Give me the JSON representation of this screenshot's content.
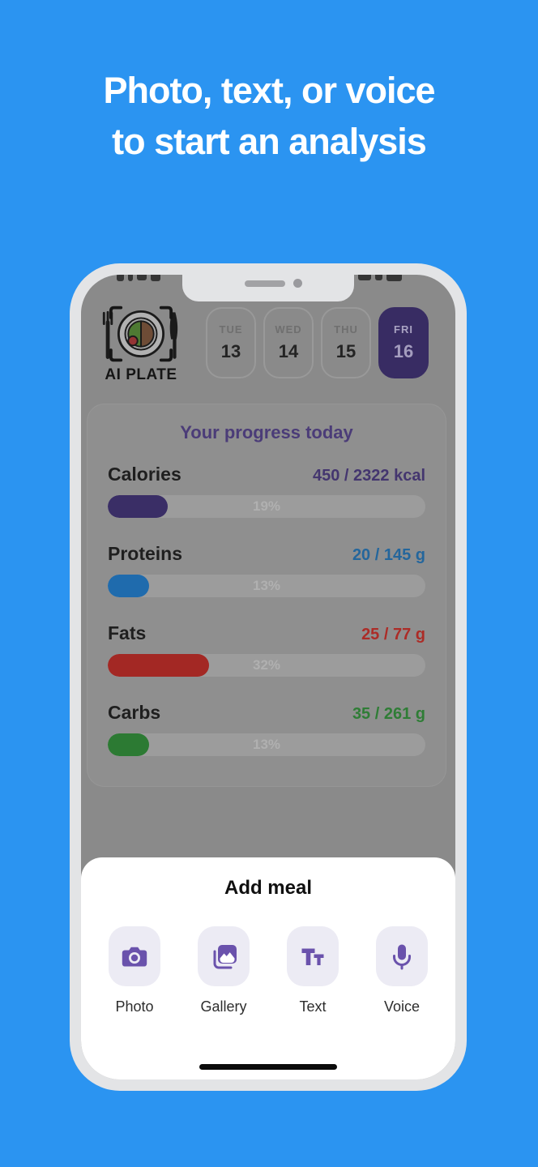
{
  "colors": {
    "background_blue": "#2B94F1",
    "headline_text": "#FFFFFF",
    "accent_purple": "#6A52AC",
    "selected_chip_bg": "#382C63",
    "progress_title_purple": "#4B3C78",
    "sheet_bg": "#FFFFFF"
  },
  "headline": {
    "line1": "Photo, text, or voice",
    "line2": "to start an analysis"
  },
  "phone": {
    "app_name": "AI PLATE",
    "dates": [
      {
        "day": "TUE",
        "num": "13",
        "selected": false
      },
      {
        "day": "WED",
        "num": "14",
        "selected": false
      },
      {
        "day": "THU",
        "num": "15",
        "selected": false
      },
      {
        "day": "FRI",
        "num": "16",
        "selected": true
      }
    ],
    "progress": {
      "title": "Your progress today",
      "rows": [
        {
          "label": "Calories",
          "value": "450 / 2322 kcal",
          "percent": 19,
          "percent_label": "19%",
          "bar_color": "#3A2E66",
          "value_color": "#44366F"
        },
        {
          "label": "Proteins",
          "value": "20 / 145 g",
          "percent": 13,
          "percent_label": "13%",
          "bar_color": "#1F6BAD",
          "value_color": "#24669C"
        },
        {
          "label": "Fats",
          "value": "25 / 77 g",
          "percent": 32,
          "percent_label": "32%",
          "bar_color": "#A32824",
          "value_color": "#AC2C27"
        },
        {
          "label": "Carbs",
          "value": "35 / 261 g",
          "percent": 13,
          "percent_label": "13%",
          "bar_color": "#2C7A33",
          "value_color": "#2F7D36"
        }
      ]
    },
    "add_meal": {
      "title": "Add meal",
      "options": [
        {
          "label": "Photo",
          "icon": "camera-icon"
        },
        {
          "label": "Gallery",
          "icon": "gallery-icon"
        },
        {
          "label": "Text",
          "icon": "text-icon"
        },
        {
          "label": "Voice",
          "icon": "microphone-icon"
        }
      ]
    }
  }
}
